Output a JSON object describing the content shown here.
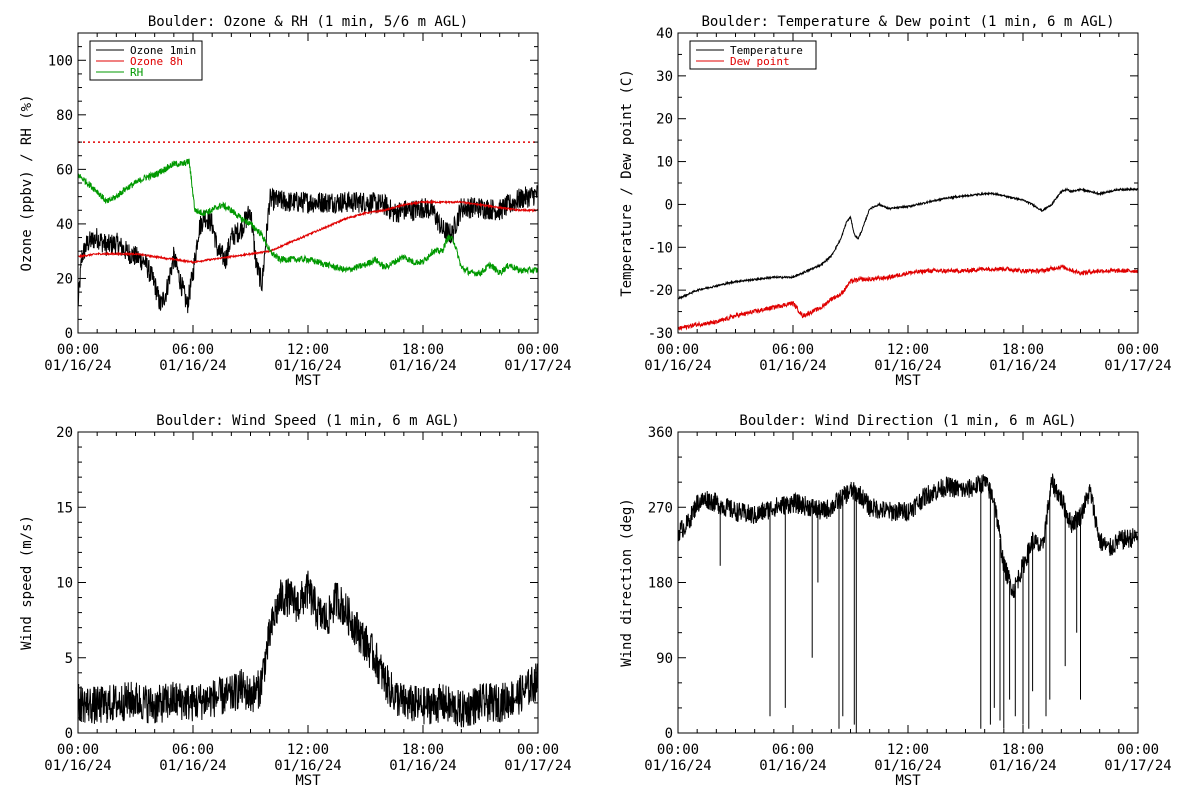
{
  "chart_data": [
    {
      "type": "line",
      "title": "Boulder: Ozone & RH (1 min, 5/6 m AGL)",
      "ylabel": "Ozone (ppbv) / RH (%)",
      "xlabel": "MST",
      "x_ticks": [
        {
          "time": "00:00",
          "date": "01/16/24",
          "hours": 0
        },
        {
          "time": "06:00",
          "date": "01/16/24",
          "hours": 6
        },
        {
          "time": "12:00",
          "date": "01/16/24",
          "hours": 12
        },
        {
          "time": "18:00",
          "date": "01/16/24",
          "hours": 18
        },
        {
          "time": "00:00",
          "date": "01/17/24",
          "hours": 24
        }
      ],
      "xlim_hours": [
        0,
        24
      ],
      "ylim": [
        0,
        110
      ],
      "y_ticks": [
        0,
        20,
        40,
        60,
        80,
        100
      ],
      "y_minor_step": 5,
      "legend": {
        "placement": "top-left",
        "entries": [
          {
            "label": "Ozone 1min",
            "color": "#000000"
          },
          {
            "label": "Ozone 8h",
            "color": "#e00000"
          },
          {
            "label": "RH",
            "color": "#009900"
          }
        ]
      },
      "reference_lines": [
        {
          "y": 70,
          "color": "#e00000",
          "style": "dotted"
        }
      ],
      "series": [
        {
          "name": "Ozone 1min",
          "color": "#000000",
          "noise": 4,
          "x_hours": [
            0,
            0.2,
            0.5,
            1,
            1.5,
            2,
            2.5,
            3,
            3.5,
            4,
            4.3,
            4.6,
            5,
            5.3,
            5.7,
            6,
            6.3,
            6.6,
            7,
            7.3,
            7.7,
            8,
            8.5,
            9,
            9.3,
            9.6,
            10,
            11,
            12,
            13,
            14,
            15,
            16,
            16.5,
            17,
            17.5,
            18,
            18.5,
            19,
            19.5,
            20,
            21,
            22,
            23,
            24
          ],
          "values": [
            10,
            28,
            33,
            35,
            32,
            33,
            30,
            28,
            26,
            18,
            10,
            15,
            28,
            20,
            10,
            22,
            38,
            43,
            40,
            30,
            27,
            35,
            38,
            45,
            25,
            18,
            49,
            48,
            48,
            48,
            48,
            48,
            47,
            44,
            45,
            45,
            46,
            45,
            38,
            36,
            46,
            46,
            45,
            49,
            51
          ]
        },
        {
          "name": "Ozone 8h",
          "color": "#e00000",
          "noise": 0.3,
          "x_hours": [
            0,
            1,
            2,
            3,
            4,
            5,
            6,
            7,
            8,
            9,
            10,
            11,
            12,
            13,
            14,
            15,
            16,
            17,
            18,
            19,
            20,
            21,
            22,
            23,
            24
          ],
          "values": [
            28,
            29,
            29,
            29,
            28,
            27,
            26,
            27,
            28,
            29,
            30,
            33,
            36,
            39,
            42,
            44,
            45,
            47,
            48,
            48,
            48,
            47,
            46,
            45,
            45
          ]
        },
        {
          "name": "RH",
          "color": "#009900",
          "noise": 1.2,
          "x_hours": [
            0,
            0.5,
            1,
            1.5,
            2,
            2.5,
            3,
            3.5,
            4,
            4.5,
            5,
            5.5,
            5.8,
            6.1,
            6.5,
            7,
            7.5,
            8,
            8.5,
            9,
            9.3,
            9.6,
            10,
            10.5,
            11,
            12,
            13,
            14,
            15,
            15.5,
            16,
            16.5,
            17,
            17.5,
            18,
            18.5,
            19,
            19.3,
            19.6,
            20,
            20.5,
            21,
            21.5,
            22,
            22.5,
            23,
            24
          ],
          "values": [
            58,
            55,
            52,
            48,
            50,
            53,
            55,
            57,
            58,
            60,
            62,
            62,
            63,
            45,
            44,
            45,
            47,
            45,
            42,
            40,
            38,
            36,
            30,
            27,
            27,
            27,
            25,
            23,
            25,
            27,
            24,
            26,
            28,
            26,
            26,
            30,
            30,
            35,
            34,
            24,
            22,
            22,
            25,
            22,
            25,
            23,
            23
          ]
        }
      ]
    },
    {
      "type": "line",
      "title": "Boulder: Temperature & Dew point (1 min, 6 m AGL)",
      "ylabel": "Temperature / Dew point (C)",
      "xlabel": "MST",
      "x_ticks": [
        {
          "time": "00:00",
          "date": "01/16/24",
          "hours": 0
        },
        {
          "time": "06:00",
          "date": "01/16/24",
          "hours": 6
        },
        {
          "time": "12:00",
          "date": "01/16/24",
          "hours": 12
        },
        {
          "time": "18:00",
          "date": "01/16/24",
          "hours": 18
        },
        {
          "time": "00:00",
          "date": "01/17/24",
          "hours": 24
        }
      ],
      "xlim_hours": [
        0,
        24
      ],
      "ylim": [
        -30,
        40
      ],
      "y_ticks": [
        -30,
        -20,
        -10,
        0,
        10,
        20,
        30,
        40
      ],
      "y_minor_step": 5,
      "legend": {
        "placement": "top-left",
        "entries": [
          {
            "label": "Temperature",
            "color": "#000000"
          },
          {
            "label": "Dew point",
            "color": "#e00000"
          }
        ]
      },
      "series": [
        {
          "name": "Temperature",
          "color": "#000000",
          "noise": 0.2,
          "x_hours": [
            0,
            0.5,
            1,
            2,
            3,
            4,
            5,
            6,
            6.5,
            7,
            7.5,
            8,
            8.5,
            8.8,
            9,
            9.2,
            9.4,
            9.6,
            10,
            10.5,
            11,
            12,
            13,
            14,
            15,
            16,
            16.5,
            17,
            17.5,
            18,
            18.5,
            19,
            19.5,
            20,
            20.3,
            20.5,
            21,
            21.5,
            22,
            22.5,
            23,
            24
          ],
          "values": [
            -22,
            -21,
            -20,
            -19,
            -18,
            -17.5,
            -17,
            -17,
            -16,
            -15,
            -14,
            -12,
            -8,
            -4,
            -3,
            -7,
            -8,
            -6,
            -1,
            0,
            -1,
            -0.5,
            0.5,
            1.5,
            2,
            2.5,
            2.5,
            2,
            1.5,
            1,
            0,
            -1.5,
            0,
            3,
            3.5,
            3,
            3.5,
            3,
            2.5,
            3,
            3.5,
            3.5
          ]
        },
        {
          "name": "Dew point",
          "color": "#e00000",
          "noise": 0.5,
          "x_hours": [
            0,
            0.5,
            1,
            2,
            3,
            4,
            5,
            6,
            6.5,
            7,
            7.5,
            8,
            8.5,
            9,
            9.5,
            10,
            11,
            12,
            13,
            14,
            15,
            16,
            17,
            18,
            19,
            20,
            21,
            22,
            23,
            24
          ],
          "values": [
            -29,
            -28.5,
            -28,
            -27.5,
            -26,
            -25,
            -24,
            -23,
            -26,
            -25,
            -24,
            -22,
            -21,
            -18,
            -17.5,
            -17.5,
            -17,
            -16,
            -15.5,
            -15.5,
            -15.5,
            -15,
            -15,
            -15.5,
            -15.5,
            -14.5,
            -16,
            -15.5,
            -15.5,
            -15.5
          ]
        }
      ]
    },
    {
      "type": "line",
      "title": "Boulder: Wind Speed (1 min, 6 m AGL)",
      "ylabel": "Wind speed (m/s)",
      "xlabel": "MST",
      "x_ticks": [
        {
          "time": "00:00",
          "date": "01/16/24",
          "hours": 0
        },
        {
          "time": "06:00",
          "date": "01/16/24",
          "hours": 6
        },
        {
          "time": "12:00",
          "date": "01/16/24",
          "hours": 12
        },
        {
          "time": "18:00",
          "date": "01/16/24",
          "hours": 18
        },
        {
          "time": "00:00",
          "date": "01/17/24",
          "hours": 24
        }
      ],
      "xlim_hours": [
        0,
        24
      ],
      "ylim": [
        0,
        20
      ],
      "y_ticks": [
        0,
        5,
        10,
        15,
        20
      ],
      "y_minor_step": 1,
      "series": [
        {
          "name": "",
          "color": "#000000",
          "noise": 1.3,
          "x_hours": [
            0,
            1,
            2,
            3,
            4,
            5,
            6,
            7,
            8,
            8.5,
            9,
            9.5,
            10,
            10.3,
            10.6,
            11,
            11.5,
            12,
            12.5,
            13,
            13.5,
            14,
            14.5,
            15,
            15.5,
            16,
            16.5,
            17,
            18,
            19,
            20,
            21,
            22,
            23,
            23.5,
            24
          ],
          "values": [
            2,
            1.8,
            2,
            2.2,
            1.8,
            2.2,
            2,
            2.3,
            2.5,
            3,
            2.5,
            3,
            6.5,
            8,
            9,
            9,
            8.5,
            9.5,
            8,
            7.5,
            9,
            8,
            7,
            6,
            5,
            3.5,
            2.5,
            2,
            1.8,
            2,
            1.5,
            2,
            2,
            2.5,
            3,
            3.5
          ]
        }
      ]
    },
    {
      "type": "line",
      "title": "Boulder: Wind Direction (1 min, 6 m AGL)",
      "ylabel": "Wind direction (deg)",
      "xlabel": "MST",
      "x_ticks": [
        {
          "time": "00:00",
          "date": "01/16/24",
          "hours": 0
        },
        {
          "time": "06:00",
          "date": "01/16/24",
          "hours": 6
        },
        {
          "time": "12:00",
          "date": "01/16/24",
          "hours": 12
        },
        {
          "time": "18:00",
          "date": "01/16/24",
          "hours": 18
        },
        {
          "time": "00:00",
          "date": "01/17/24",
          "hours": 24
        }
      ],
      "xlim_hours": [
        0,
        24
      ],
      "ylim": [
        0,
        360
      ],
      "y_ticks": [
        0,
        90,
        180,
        270,
        360
      ],
      "y_minor_step": 30,
      "series": [
        {
          "name": "",
          "color": "#000000",
          "noise": 12,
          "x_hours": [
            0,
            0.5,
            1,
            1.5,
            2,
            3,
            4,
            5,
            6,
            7,
            7.5,
            8,
            8.5,
            9,
            9.5,
            10,
            11,
            12,
            13,
            14,
            15,
            16,
            16.5,
            17,
            17.5,
            18,
            18.5,
            19,
            19.5,
            20,
            20.5,
            21,
            21.5,
            22,
            22.5,
            23,
            24
          ],
          "values": [
            240,
            250,
            275,
            280,
            275,
            265,
            260,
            270,
            275,
            270,
            265,
            270,
            280,
            290,
            285,
            270,
            265,
            265,
            285,
            295,
            290,
            300,
            280,
            200,
            170,
            200,
            230,
            220,
            300,
            280,
            250,
            260,
            290,
            230,
            220,
            230,
            235
          ]
        },
        {
          "name": "",
          "color": "#000000",
          "noise": 0,
          "style": "spikes",
          "x_hours": [
            2.2,
            4.8,
            5.6,
            7.0,
            7.3,
            8.4,
            8.6,
            9.2,
            9.3,
            15.8,
            16.3,
            16.5,
            16.8,
            17.0,
            17.3,
            17.6,
            18.0,
            18.3,
            18.5,
            19.2,
            19.4,
            20.2,
            20.8,
            21.0
          ],
          "values": [
            200,
            20,
            30,
            90,
            180,
            5,
            20,
            10,
            0,
            5,
            10,
            30,
            15,
            5,
            40,
            20,
            10,
            5,
            50,
            20,
            40,
            80,
            120,
            40
          ]
        }
      ]
    }
  ]
}
